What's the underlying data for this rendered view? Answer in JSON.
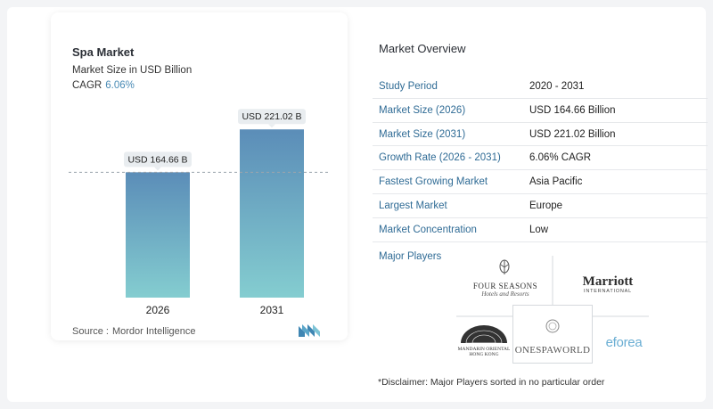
{
  "card": {
    "title": "Spa Market",
    "subtitle": "Market Size in USD Billion",
    "cagr_label": "CAGR",
    "cagr_value": "6.06%",
    "source_label": "Source :",
    "source_value": "Mordor Intelligence"
  },
  "chart_data": {
    "type": "bar",
    "categories": [
      "2026",
      "2031"
    ],
    "values": [
      164.66,
      221.02
    ],
    "value_labels": [
      "USD 164.66 B",
      "USD 221.02 B"
    ],
    "ylim": [
      0,
      240
    ],
    "grid": false,
    "colors": {
      "bar_top": "#5b8db8",
      "bar_bottom": "#84cdd0",
      "label_bg": "#e9edf0",
      "reference_line": "#9aa4ad"
    }
  },
  "overview": {
    "title": "Market Overview",
    "rows": [
      {
        "key": "Study Period",
        "value": "2020 - 2031"
      },
      {
        "key": "Market Size (2026)",
        "value": "USD 164.66 Billion"
      },
      {
        "key": "Market Size (2031)",
        "value": "USD 221.02 Billion"
      },
      {
        "key": "Growth Rate (2026 - 2031)",
        "value": "6.06% CAGR"
      },
      {
        "key": "Fastest Growing Market",
        "value": "Asia Pacific"
      },
      {
        "key": "Largest Market",
        "value": "Europe"
      },
      {
        "key": "Market Concentration",
        "value": "Low"
      }
    ],
    "players_title": "Major Players",
    "players": {
      "four_seasons_1": "FOUR SEASONS",
      "four_seasons_2": "Hotels and Resorts",
      "marriott_1": "Marriott",
      "marriott_2": "INTERNATIONAL",
      "mandarin_1": "MANDARIN ORIENTAL",
      "mandarin_2": "HONG KONG",
      "onespaworld": "ONESPAWORLD",
      "eforea": "eforea"
    },
    "disclaimer": "*Disclaimer: Major Players sorted in no particular order"
  },
  "colors": {
    "accent": "#2f6b95",
    "cagr": "#4a8bb5"
  }
}
